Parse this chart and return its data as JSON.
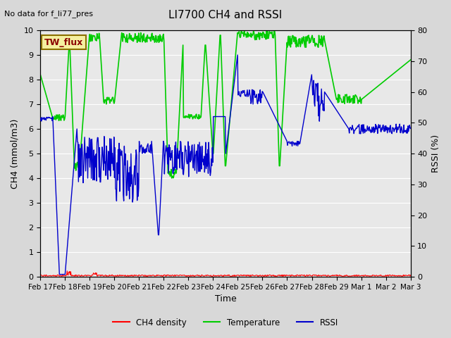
{
  "title": "LI7700 CH4 and RSSI",
  "top_left_note": "No data for f_li77_pres",
  "box_label": "TW_flux",
  "xlabel": "Time",
  "ylabel_left": "CH4 (mmol/m3)",
  "ylabel_right": "RSSI (%)",
  "ylim_left": [
    0.0,
    10.0
  ],
  "ylim_right": [
    0,
    80
  ],
  "yticks_left": [
    0.0,
    1.0,
    2.0,
    3.0,
    4.0,
    5.0,
    6.0,
    7.0,
    8.0,
    9.0,
    10.0
  ],
  "yticks_right": [
    0,
    10,
    20,
    30,
    40,
    50,
    60,
    70,
    80
  ],
  "xtick_labels": [
    "Feb 17",
    "Feb 18",
    "Feb 19",
    "Feb 20",
    "Feb 21",
    "Feb 22",
    "Feb 23",
    "Feb 24",
    "Feb 25",
    "Feb 26",
    "Feb 27",
    "Feb 28",
    "Feb 29",
    "Mar 1",
    "Mar 2",
    "Mar 3"
  ],
  "bg_color": "#d8d8d8",
  "plot_bg_color": "#e8e8e8",
  "ch4_color": "#ff0000",
  "temp_color": "#00cc00",
  "rssi_color": "#0000cc",
  "legend_entries": [
    "CH4 density",
    "Temperature",
    "RSSI"
  ],
  "legend_colors": [
    "#ff0000",
    "#00cc00",
    "#0000cc"
  ]
}
